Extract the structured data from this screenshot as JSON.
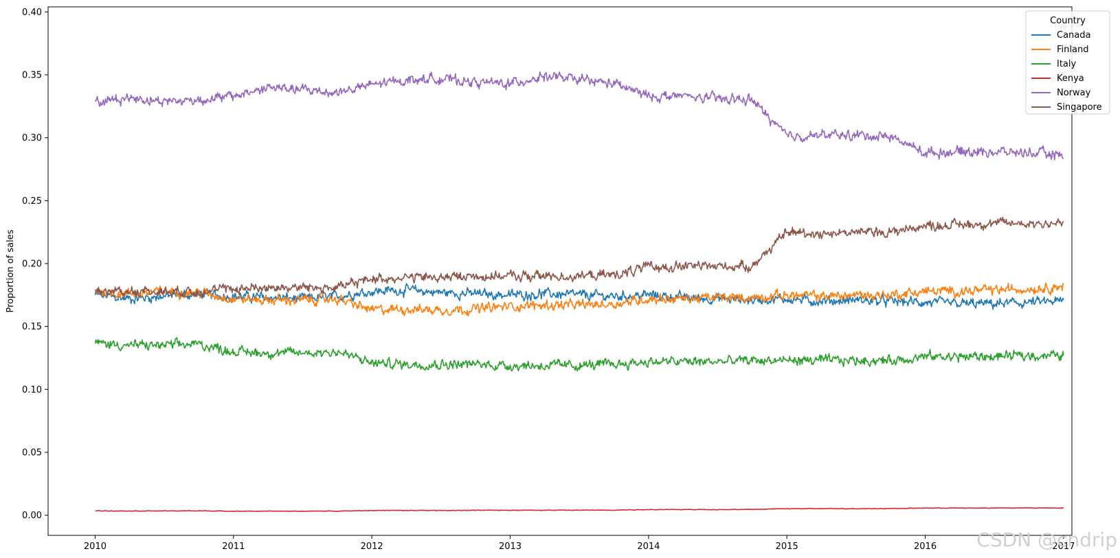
{
  "chart_data": {
    "type": "line",
    "title": "",
    "xlabel": "",
    "ylabel": "Proportion of sales",
    "xlim": [
      2009.66,
      2017.06
    ],
    "ylim": [
      -0.016,
      0.404
    ],
    "x_ticks": [
      2010,
      2011,
      2012,
      2013,
      2014,
      2015,
      2016,
      2017
    ],
    "y_ticks": [
      0.0,
      0.05,
      0.1,
      0.15,
      0.2,
      0.25,
      0.3,
      0.35,
      0.4
    ],
    "y_tick_labels": [
      "0.00",
      "0.05",
      "0.10",
      "0.15",
      "0.20",
      "0.25",
      "0.30",
      "0.35",
      "0.40"
    ],
    "grid": false,
    "legend": {
      "title": "Country",
      "placement": "top-right"
    },
    "x": [
      2010.0,
      2010.25,
      2010.5,
      2010.75,
      2011.0,
      2011.25,
      2011.5,
      2011.75,
      2012.0,
      2012.25,
      2012.5,
      2012.75,
      2013.0,
      2013.25,
      2013.5,
      2013.75,
      2014.0,
      2014.25,
      2014.5,
      2014.75,
      2015.0,
      2015.25,
      2015.5,
      2015.75,
      2016.0,
      2016.25,
      2016.5,
      2016.75,
      2017.0
    ],
    "series": [
      {
        "name": "Canada",
        "color": "#1f77b4",
        "values": [
          0.175,
          0.172,
          0.174,
          0.176,
          0.174,
          0.173,
          0.172,
          0.174,
          0.178,
          0.179,
          0.177,
          0.176,
          0.175,
          0.176,
          0.175,
          0.174,
          0.175,
          0.173,
          0.172,
          0.171,
          0.172,
          0.17,
          0.171,
          0.17,
          0.169,
          0.168,
          0.168,
          0.169,
          0.17
        ]
      },
      {
        "name": "Finland",
        "color": "#ff7f0e",
        "values": [
          0.178,
          0.176,
          0.178,
          0.177,
          0.172,
          0.171,
          0.171,
          0.172,
          0.163,
          0.164,
          0.163,
          0.164,
          0.166,
          0.167,
          0.167,
          0.168,
          0.172,
          0.172,
          0.173,
          0.173,
          0.175,
          0.174,
          0.175,
          0.175,
          0.178,
          0.178,
          0.179,
          0.18,
          0.182
        ]
      },
      {
        "name": "Italy",
        "color": "#2ca02c",
        "values": [
          0.137,
          0.135,
          0.135,
          0.136,
          0.13,
          0.129,
          0.129,
          0.13,
          0.121,
          0.12,
          0.12,
          0.12,
          0.119,
          0.119,
          0.119,
          0.12,
          0.122,
          0.122,
          0.122,
          0.123,
          0.123,
          0.123,
          0.123,
          0.123,
          0.126,
          0.126,
          0.126,
          0.127,
          0.127
        ]
      },
      {
        "name": "Kenya",
        "color": "#d62728",
        "values": [
          0.0035,
          0.0034,
          0.0034,
          0.0035,
          0.0032,
          0.0032,
          0.0032,
          0.0033,
          0.0038,
          0.0038,
          0.0038,
          0.0039,
          0.004,
          0.004,
          0.004,
          0.0041,
          0.0045,
          0.0045,
          0.0045,
          0.0046,
          0.0052,
          0.0052,
          0.0052,
          0.0053,
          0.0057,
          0.0057,
          0.0057,
          0.0058,
          0.0058
        ]
      },
      {
        "name": "Norway",
        "color": "#9467bd",
        "values": [
          0.328,
          0.332,
          0.329,
          0.33,
          0.333,
          0.34,
          0.338,
          0.336,
          0.342,
          0.346,
          0.347,
          0.344,
          0.343,
          0.349,
          0.346,
          0.343,
          0.333,
          0.333,
          0.331,
          0.33,
          0.301,
          0.302,
          0.302,
          0.301,
          0.288,
          0.289,
          0.289,
          0.288,
          0.286
        ]
      },
      {
        "name": "Singapore",
        "color": "#8c564b",
        "values": [
          0.178,
          0.178,
          0.178,
          0.178,
          0.18,
          0.181,
          0.181,
          0.181,
          0.188,
          0.189,
          0.189,
          0.19,
          0.19,
          0.19,
          0.19,
          0.191,
          0.197,
          0.198,
          0.198,
          0.198,
          0.225,
          0.224,
          0.225,
          0.225,
          0.23,
          0.231,
          0.232,
          0.232,
          0.232
        ]
      }
    ]
  },
  "watermark": "CSDN @cndrip"
}
